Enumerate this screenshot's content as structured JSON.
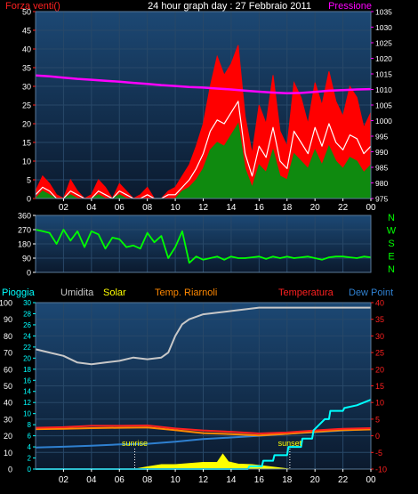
{
  "colors": {
    "background": "#000000",
    "plot_top": "#1c4874",
    "plot_bottom": "#0b1a2e",
    "grid": "#284868",
    "wind_speed": "#ff0000",
    "wind_avg": "#ffffff",
    "wind_lull": "#0f8a0f",
    "pressure": "#ff00ff",
    "direction": "#00ff00",
    "humidity": "#c8c8c8",
    "solar": "#ffff00",
    "temp_heat_index": "#ff8800",
    "temperature": "#ff2020",
    "dew_point": "#2f80d0",
    "rain": "#00ffff",
    "axis_text": "#ffffff"
  },
  "chart_data": [
    {
      "id": "wind-pressure",
      "type": "line",
      "title": "24 hour graph day : 27 Febbraio 2011",
      "left_label": "Forza venti()",
      "right_label": "Pressione",
      "x_ticks": [
        "02",
        "04",
        "06",
        "08",
        "10",
        "12",
        "14",
        "16",
        "18",
        "20",
        "22",
        "00"
      ],
      "xlim": [
        0,
        24
      ],
      "left_ylim": [
        0,
        50
      ],
      "left_ticks": [
        0,
        5,
        10,
        15,
        20,
        25,
        30,
        35,
        40,
        45,
        50
      ],
      "right_ylim": [
        975,
        1035
      ],
      "right_ticks": [
        975,
        980,
        985,
        990,
        995,
        1000,
        1005,
        1010,
        1015,
        1020,
        1025,
        1030,
        1035
      ],
      "grid": true,
      "series": [
        {
          "role": "gust",
          "axis": "left",
          "x": [
            0,
            0.5,
            1,
            1.5,
            2,
            2.5,
            3,
            3.5,
            4,
            4.5,
            5,
            5.5,
            6,
            6.5,
            7,
            7.5,
            8,
            8.5,
            9,
            9.5,
            10,
            10.5,
            11,
            11.5,
            12,
            12.5,
            13,
            13.5,
            14,
            14.5,
            15,
            15.5,
            16,
            16.5,
            17,
            17.5,
            18,
            18.5,
            19,
            19.5,
            20,
            20.5,
            21,
            21.5,
            22,
            22.5,
            23,
            23.5,
            24
          ],
          "values": [
            2,
            6,
            4,
            1,
            0,
            5,
            2,
            0,
            1,
            5,
            3,
            0,
            4,
            2,
            0,
            1,
            3,
            0,
            0,
            2,
            3,
            6,
            9,
            14,
            20,
            30,
            38,
            33,
            36,
            41,
            22,
            12,
            25,
            20,
            33,
            18,
            14,
            31,
            27,
            20,
            31,
            25,
            34,
            26,
            22,
            30,
            27,
            19,
            23
          ]
        },
        {
          "role": "average",
          "axis": "left",
          "x": [
            0,
            0.5,
            1,
            1.5,
            2,
            2.5,
            3,
            3.5,
            4,
            4.5,
            5,
            5.5,
            6,
            6.5,
            7,
            7.5,
            8,
            8.5,
            9,
            9.5,
            10,
            10.5,
            11,
            11.5,
            12,
            12.5,
            13,
            13.5,
            14,
            14.5,
            15,
            15.5,
            16,
            16.5,
            17,
            17.5,
            18,
            18.5,
            19,
            19.5,
            20,
            20.5,
            21,
            21.5,
            22,
            22.5,
            23,
            23.5,
            24
          ],
          "values": [
            1,
            3,
            2,
            0,
            0,
            2,
            1,
            0,
            0,
            2,
            1,
            0,
            2,
            1,
            0,
            0,
            1,
            0,
            0,
            1,
            1,
            3,
            5,
            8,
            12,
            18,
            21,
            20,
            23,
            26,
            12,
            6,
            14,
            11,
            19,
            10,
            8,
            18,
            15,
            12,
            19,
            14,
            20,
            15,
            13,
            17,
            16,
            12,
            14
          ]
        },
        {
          "role": "lull",
          "axis": "left",
          "x": [
            0,
            0.5,
            1,
            1.5,
            2,
            2.5,
            3,
            3.5,
            4,
            4.5,
            5,
            5.5,
            6,
            6.5,
            7,
            7.5,
            8,
            8.5,
            9,
            9.5,
            10,
            10.5,
            11,
            11.5,
            12,
            12.5,
            13,
            13.5,
            14,
            14.5,
            15,
            15.5,
            16,
            16.5,
            17,
            17.5,
            18,
            18.5,
            19,
            19.5,
            20,
            20.5,
            21,
            21.5,
            22,
            22.5,
            23,
            23.5,
            24
          ],
          "values": [
            0,
            2,
            1,
            0,
            0,
            1,
            0,
            0,
            0,
            1,
            0,
            0,
            1,
            0,
            0,
            0,
            0,
            0,
            0,
            0,
            0,
            2,
            3,
            5,
            8,
            13,
            15,
            14,
            17,
            20,
            8,
            3,
            9,
            7,
            13,
            6,
            5,
            12,
            10,
            8,
            13,
            9,
            14,
            10,
            8,
            11,
            10,
            7,
            9
          ]
        },
        {
          "role": "pressure",
          "axis": "right",
          "x": [
            0,
            1,
            2,
            3,
            4,
            5,
            6,
            7,
            8,
            9,
            10,
            11,
            12,
            13,
            14,
            15,
            16,
            17,
            18,
            19,
            20,
            21,
            22,
            23,
            24
          ],
          "values": [
            1014.5,
            1014.2,
            1013.8,
            1013.4,
            1013.1,
            1012.8,
            1012.5,
            1012.1,
            1011.8,
            1011.4,
            1011.1,
            1010.8,
            1010.6,
            1010.3,
            1010.0,
            1009.6,
            1009.3,
            1009.0,
            1008.8,
            1008.9,
            1009.2,
            1009.6,
            1009.8,
            1010.0,
            1010.1
          ]
        }
      ]
    },
    {
      "id": "wind-direction",
      "type": "line",
      "y_ticks": [
        0,
        90,
        180,
        270,
        360
      ],
      "ylim": [
        0,
        360
      ],
      "xlim": [
        0,
        24
      ],
      "compass_labels": [
        "N",
        "W",
        "S",
        "E",
        "N"
      ],
      "grid": true,
      "series": [
        {
          "role": "direction",
          "x": [
            0,
            0.5,
            1,
            1.5,
            2,
            2.5,
            3,
            3.5,
            4,
            4.5,
            5,
            5.5,
            6,
            6.5,
            7,
            7.5,
            8,
            8.5,
            9,
            9.5,
            10,
            10.5,
            11,
            11.5,
            12,
            12.5,
            13,
            13.5,
            14,
            14.5,
            15,
            15.5,
            16,
            16.5,
            17,
            17.5,
            18,
            18.5,
            19,
            19.5,
            20,
            20.5,
            21,
            21.5,
            22,
            22.5,
            23,
            23.5,
            24
          ],
          "values": [
            270,
            260,
            250,
            180,
            270,
            200,
            260,
            160,
            260,
            240,
            150,
            220,
            210,
            160,
            170,
            150,
            250,
            190,
            230,
            90,
            160,
            260,
            60,
            100,
            80,
            90,
            100,
            80,
            100,
            90,
            90,
            95,
            100,
            85,
            100,
            90,
            100,
            90,
            95,
            100,
            90,
            80,
            95,
            100,
            100,
            95,
            90,
            100,
            95
          ]
        }
      ]
    },
    {
      "id": "multi-sensor",
      "type": "line",
      "legend": [
        "Pioggia",
        "Umidita",
        "Solar",
        "Temp. Riarnoli",
        "Temperatura",
        "Dew Point"
      ],
      "x_ticks": [
        "02",
        "04",
        "06",
        "08",
        "10",
        "12",
        "14",
        "16",
        "18",
        "20",
        "22",
        "00"
      ],
      "xlim": [
        0,
        24
      ],
      "outer_left_ticks": [
        0,
        10,
        20,
        30,
        40,
        50,
        60,
        70,
        80,
        90,
        100
      ],
      "outer_left_ylim": [
        0,
        100
      ],
      "inner_left_ticks": [
        0,
        2,
        4,
        6,
        8,
        10,
        12,
        14,
        16,
        18,
        20,
        22,
        24,
        26,
        28,
        30
      ],
      "inner_left_ylim": [
        0,
        30
      ],
      "right_ticks": [
        -10,
        -5,
        0,
        5,
        10,
        15,
        20,
        25,
        30,
        35,
        40
      ],
      "right_ylim": [
        -10,
        40
      ],
      "annotations": [
        {
          "label": "sunrise",
          "x": 7.1
        },
        {
          "label": "sunset",
          "x": 18.2
        }
      ],
      "grid": true,
      "series": [
        {
          "name": "Umidita",
          "axis": "outer_left",
          "x": [
            0,
            1,
            2,
            3,
            4,
            5,
            6,
            7,
            8,
            9,
            9.5,
            10,
            10.5,
            11,
            12,
            13,
            14,
            15,
            16,
            17,
            18,
            19,
            20,
            21,
            22,
            23,
            24
          ],
          "values": [
            72,
            70,
            68,
            64,
            63,
            64,
            65,
            67,
            66,
            67,
            70,
            80,
            87,
            90,
            93,
            94,
            95,
            96,
            97,
            97,
            97,
            97,
            97,
            97,
            97,
            97,
            97
          ]
        },
        {
          "name": "Temperatura",
          "axis": "right",
          "x": [
            0,
            2,
            4,
            6,
            8,
            10,
            12,
            14,
            16,
            18,
            20,
            22,
            24
          ],
          "values": [
            2.4,
            2.6,
            3.0,
            3.0,
            3.1,
            2.2,
            1.6,
            1.2,
            0.7,
            1.0,
            1.6,
            2.1,
            2.3
          ]
        },
        {
          "name": "Temp. Riarnoli",
          "axis": "right",
          "x": [
            0,
            2,
            4,
            6,
            8,
            10,
            12,
            14,
            16,
            18,
            20,
            22,
            24
          ],
          "values": [
            2.0,
            2.1,
            2.3,
            2.4,
            2.5,
            1.7,
            0.8,
            0.5,
            0.1,
            0.6,
            1.2,
            1.7,
            1.9
          ]
        },
        {
          "name": "Dew Point",
          "axis": "right",
          "x": [
            0,
            2,
            4,
            6,
            8,
            10,
            12,
            14,
            16,
            18,
            20,
            22,
            24
          ],
          "values": [
            -3.5,
            -3.3,
            -3.0,
            -2.6,
            -2.4,
            -1.8,
            -1.0,
            -0.5,
            0.0,
            0.6,
            1.1,
            1.6,
            2.0
          ]
        },
        {
          "name": "Pioggia",
          "axis": "inner_left",
          "x": [
            0,
            14,
            15.2,
            15.3,
            16.2,
            16.3,
            17.0,
            17.1,
            18.0,
            18.1,
            19.0,
            19.1,
            19.8,
            19.9,
            20.7,
            21.0,
            21.1,
            22.0,
            22.1,
            23.0,
            24
          ],
          "values": [
            0,
            0,
            0,
            0.5,
            0.5,
            1.5,
            1.5,
            2.5,
            2.5,
            4.0,
            4.0,
            5.5,
            5.5,
            7.0,
            9.0,
            9.0,
            10.5,
            10.5,
            11.0,
            11.5,
            12.5
          ]
        },
        {
          "name": "Solar",
          "axis": "inner_left",
          "x": [
            0,
            7.1,
            8,
            9,
            10,
            11,
            12,
            13,
            13.4,
            13.8,
            14.5,
            15.5,
            16.5,
            17.5,
            18.2,
            24
          ],
          "values": [
            0,
            0,
            0.4,
            0.8,
            0.8,
            1.0,
            1.2,
            1.2,
            2.7,
            1.3,
            0.9,
            0.8,
            0.5,
            0.2,
            0,
            0
          ]
        }
      ]
    }
  ]
}
